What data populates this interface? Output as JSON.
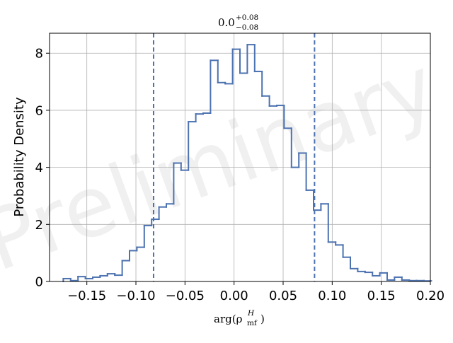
{
  "chart_data": {
    "type": "histogram",
    "title": {
      "base": "0.0",
      "sup": "+0.08",
      "sub": "−0.08"
    },
    "xlabel": {
      "base": "arg(ρ",
      "sub": "mf",
      "sup": "H",
      "close": ")"
    },
    "ylabel": "Probability Density",
    "watermark": "Preliminary",
    "xlim": [
      -0.188,
      0.2
    ],
    "ylim": [
      0,
      8.7
    ],
    "xticks": [
      -0.15,
      -0.1,
      -0.05,
      0.0,
      0.05,
      0.1,
      0.15,
      0.2
    ],
    "xtick_labels": [
      "−0.15",
      "−0.10",
      "−0.05",
      "0.00",
      "0.05",
      "0.10",
      "0.15",
      "0.20"
    ],
    "yticks": [
      0,
      2,
      4,
      6,
      8
    ],
    "ytick_labels": [
      "0",
      "2",
      "4",
      "6",
      "8"
    ],
    "grid": true,
    "bin_start": -0.174,
    "bin_width": 0.0075,
    "values": [
      0.1,
      0.03,
      0.17,
      0.1,
      0.15,
      0.2,
      0.27,
      0.22,
      0.73,
      1.08,
      1.2,
      1.96,
      2.18,
      2.61,
      2.72,
      4.15,
      3.9,
      5.6,
      5.87,
      5.9,
      7.75,
      6.97,
      6.93,
      8.14,
      7.3,
      8.3,
      7.36,
      6.5,
      6.15,
      6.17,
      5.37,
      4.0,
      4.5,
      3.2,
      2.5,
      2.72,
      1.38,
      1.28,
      0.85,
      0.45,
      0.35,
      0.32,
      0.2,
      0.3,
      0.05,
      0.15,
      0.05,
      0.03,
      0.03,
      0.02
    ],
    "vlines": [
      -0.082,
      0.082
    ],
    "color": "#4c72b0",
    "grid_color": "#b0b0b0"
  }
}
